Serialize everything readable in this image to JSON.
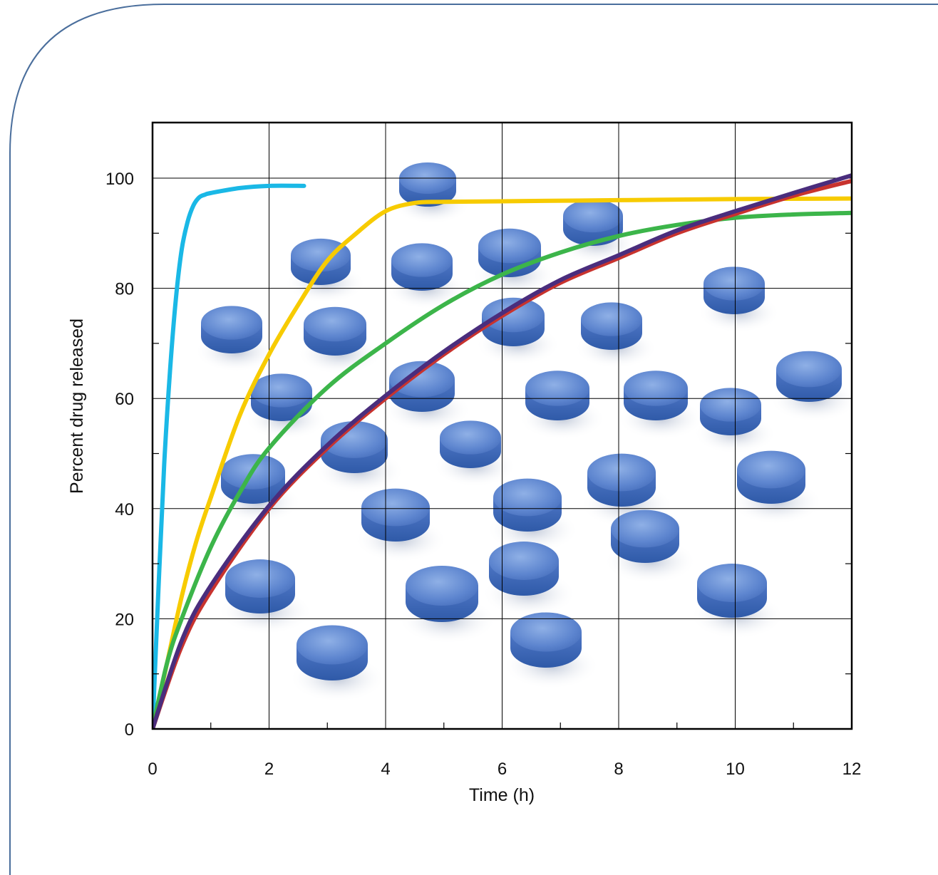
{
  "chart_data": {
    "type": "line",
    "title": "",
    "xlabel": "Time (h)",
    "ylabel": "Percent drug released",
    "xlim": [
      0,
      12
    ],
    "ylim": [
      0,
      110
    ],
    "x_ticks": [
      0,
      2,
      4,
      6,
      8,
      10,
      12
    ],
    "y_ticks": [
      0,
      20,
      40,
      60,
      80,
      100
    ],
    "x_tick_labels": [
      "0",
      "2",
      "4",
      "6",
      "8",
      "10",
      "12"
    ],
    "y_tick_labels": [
      "0",
      "20",
      "40",
      "60",
      "80",
      "100"
    ],
    "grid": true,
    "legend": "none",
    "background": "photograph of blue tablets",
    "series": [
      {
        "color": "#1ab8e6",
        "x": [
          0,
          0.1,
          0.2,
          0.3,
          0.4,
          0.5,
          0.6,
          0.7,
          0.8,
          0.9,
          1.0,
          1.5,
          2.0,
          2.6
        ],
        "y": [
          0,
          25,
          48,
          65,
          78,
          87,
          92,
          95,
          96.5,
          97,
          97.3,
          98.2,
          98.6,
          98.6
        ]
      },
      {
        "color": "#f7cb00",
        "x": [
          0,
          0.25,
          0.5,
          0.75,
          1.0,
          1.5,
          2.0,
          2.5,
          3.0,
          3.5,
          4.0,
          4.5,
          5.0,
          6.0,
          8.0,
          10.0,
          12.0
        ],
        "y": [
          0,
          12,
          24,
          34,
          42,
          57,
          68,
          77,
          85,
          90,
          94,
          95.5,
          95.7,
          95.8,
          96,
          96.2,
          96.3
        ]
      },
      {
        "color": "#3cb54a",
        "x": [
          0,
          0.25,
          0.5,
          1.0,
          1.5,
          2.0,
          3.0,
          4.0,
          5.0,
          6.0,
          7.0,
          8.0,
          9.0,
          10.0,
          11.0,
          12.0
        ],
        "y": [
          0,
          12,
          20,
          33,
          43,
          51,
          62,
          70,
          77,
          82.5,
          86.5,
          89.5,
          91.5,
          92.8,
          93.4,
          93.7
        ]
      },
      {
        "color": "#c8332e",
        "x": [
          0,
          0.5,
          1.0,
          2.0,
          3.0,
          4.0,
          5.0,
          6.0,
          7.0,
          8.0,
          9.0,
          10.0,
          11.0,
          12.0
        ],
        "y": [
          0,
          15,
          25,
          40,
          51,
          60,
          68,
          75,
          81,
          85.5,
          90,
          93.5,
          96.8,
          99.5
        ]
      },
      {
        "color": "#4a2d7d",
        "x": [
          0,
          0.5,
          1.0,
          2.0,
          3.0,
          4.0,
          5.0,
          6.0,
          7.0,
          8.0,
          9.0,
          10.0,
          11.0,
          12.0
        ],
        "y": [
          0,
          16,
          26,
          40.5,
          51.5,
          60.5,
          68.5,
          75.5,
          81.5,
          86,
          90.5,
          94,
          97.3,
          100.5
        ]
      }
    ]
  }
}
